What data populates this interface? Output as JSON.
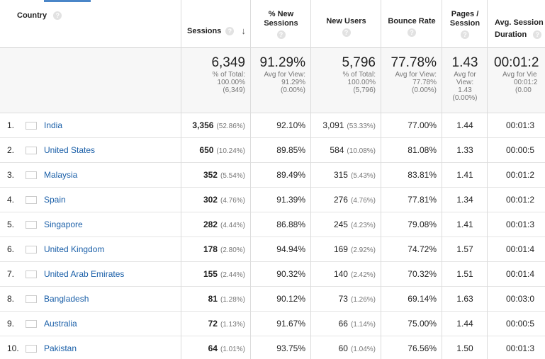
{
  "headers": {
    "country": "Country",
    "sessions": "Sessions",
    "new_sessions_line1": "% New",
    "new_sessions_line2": "Sessions",
    "new_users": "New Users",
    "bounce_rate": "Bounce Rate",
    "pages_line1": "Pages /",
    "pages_line2": "Session",
    "duration_line1": "Avg. Session",
    "duration_line2": "Duration",
    "help_glyph": "?",
    "sort_glyph": "↓"
  },
  "totals": {
    "sessions": {
      "value": "6,349",
      "sub1": "% of Total:",
      "sub2": "100.00%",
      "sub3": "(6,349)"
    },
    "new_sessions": {
      "value": "91.29%",
      "sub1": "Avg for View:",
      "sub2": "91.29%",
      "sub3": "(0.00%)"
    },
    "new_users": {
      "value": "5,796",
      "sub1": "% of Total:",
      "sub2": "100.00%",
      "sub3": "(5,796)"
    },
    "bounce_rate": {
      "value": "77.78%",
      "sub1": "Avg for View:",
      "sub2": "77.78%",
      "sub3": "(0.00%)"
    },
    "pages": {
      "value": "1.43",
      "sub1": "Avg for",
      "sub2": "View:",
      "sub3": "1.43",
      "sub4": "(0.00%)"
    },
    "duration": {
      "value": "00:01:2",
      "sub1": "Avg for Vie",
      "sub2": "00:01:2",
      "sub3": "(0.00"
    }
  },
  "rows": [
    {
      "rank": "1.",
      "country": "India",
      "flag": "in",
      "sessions": "3,356",
      "sessions_pct": "(52.86%)",
      "new_sessions": "92.10%",
      "new_users": "3,091",
      "new_users_pct": "(53.33%)",
      "bounce": "77.00%",
      "pages": "1.44",
      "duration": "00:01:3"
    },
    {
      "rank": "2.",
      "country": "United States",
      "flag": "us",
      "sessions": "650",
      "sessions_pct": "(10.24%)",
      "new_sessions": "89.85%",
      "new_users": "584",
      "new_users_pct": "(10.08%)",
      "bounce": "81.08%",
      "pages": "1.33",
      "duration": "00:00:5"
    },
    {
      "rank": "3.",
      "country": "Malaysia",
      "flag": "my",
      "sessions": "352",
      "sessions_pct": "(5.54%)",
      "new_sessions": "89.49%",
      "new_users": "315",
      "new_users_pct": "(5.43%)",
      "bounce": "83.81%",
      "pages": "1.41",
      "duration": "00:01:2"
    },
    {
      "rank": "4.",
      "country": "Spain",
      "flag": "es",
      "sessions": "302",
      "sessions_pct": "(4.76%)",
      "new_sessions": "91.39%",
      "new_users": "276",
      "new_users_pct": "(4.76%)",
      "bounce": "77.81%",
      "pages": "1.34",
      "duration": "00:01:2"
    },
    {
      "rank": "5.",
      "country": "Singapore",
      "flag": "sg",
      "sessions": "282",
      "sessions_pct": "(4.44%)",
      "new_sessions": "86.88%",
      "new_users": "245",
      "new_users_pct": "(4.23%)",
      "bounce": "79.08%",
      "pages": "1.41",
      "duration": "00:01:3"
    },
    {
      "rank": "6.",
      "country": "United Kingdom",
      "flag": "gb",
      "sessions": "178",
      "sessions_pct": "(2.80%)",
      "new_sessions": "94.94%",
      "new_users": "169",
      "new_users_pct": "(2.92%)",
      "bounce": "74.72%",
      "pages": "1.57",
      "duration": "00:01:4"
    },
    {
      "rank": "7.",
      "country": "United Arab Emirates",
      "flag": "ae",
      "sessions": "155",
      "sessions_pct": "(2.44%)",
      "new_sessions": "90.32%",
      "new_users": "140",
      "new_users_pct": "(2.42%)",
      "bounce": "70.32%",
      "pages": "1.51",
      "duration": "00:01:4"
    },
    {
      "rank": "8.",
      "country": "Bangladesh",
      "flag": "bd",
      "sessions": "81",
      "sessions_pct": "(1.28%)",
      "new_sessions": "90.12%",
      "new_users": "73",
      "new_users_pct": "(1.26%)",
      "bounce": "69.14%",
      "pages": "1.63",
      "duration": "00:03:0"
    },
    {
      "rank": "9.",
      "country": "Australia",
      "flag": "au",
      "sessions": "72",
      "sessions_pct": "(1.13%)",
      "new_sessions": "91.67%",
      "new_users": "66",
      "new_users_pct": "(1.14%)",
      "bounce": "75.00%",
      "pages": "1.44",
      "duration": "00:00:5"
    },
    {
      "rank": "10.",
      "country": "Pakistan",
      "flag": "pk",
      "sessions": "64",
      "sessions_pct": "(1.01%)",
      "new_sessions": "93.75%",
      "new_users": "60",
      "new_users_pct": "(1.04%)",
      "bounce": "76.56%",
      "pages": "1.50",
      "duration": "00:01:3"
    }
  ],
  "colors": {
    "link": "#1a5fa8",
    "tab_accent": "#4a86c8",
    "header_border": "#cfcfcf",
    "totals_bg": "#f7f7f7",
    "muted": "#777777"
  }
}
